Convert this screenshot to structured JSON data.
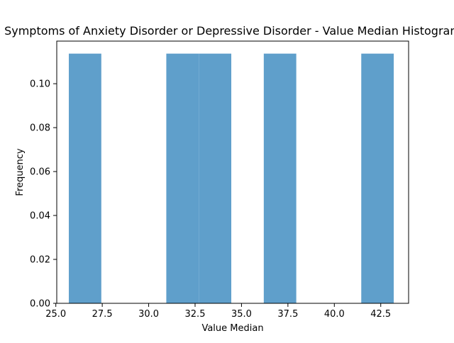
{
  "chart_data": {
    "type": "bar",
    "title": "Symptoms of Anxiety Disorder or Depressive Disorder - Value Median Histogram",
    "xlabel": "Value Median",
    "ylabel": "Frequency",
    "xlim": [
      25.05,
      44.0
    ],
    "ylim": [
      0,
      0.1194
    ],
    "bins": [
      {
        "x0": 25.7,
        "x1": 27.45,
        "value": 0.1137
      },
      {
        "x0": 27.45,
        "x1": 29.2,
        "value": 0
      },
      {
        "x0": 29.2,
        "x1": 30.95,
        "value": 0
      },
      {
        "x0": 30.95,
        "x1": 32.7,
        "value": 0.1137
      },
      {
        "x0": 32.7,
        "x1": 34.45,
        "value": 0.1137
      },
      {
        "x0": 34.45,
        "x1": 36.2,
        "value": 0
      },
      {
        "x0": 36.2,
        "x1": 37.95,
        "value": 0.1137
      },
      {
        "x0": 37.95,
        "x1": 39.7,
        "value": 0
      },
      {
        "x0": 39.7,
        "x1": 41.45,
        "value": 0
      },
      {
        "x0": 41.45,
        "x1": 43.2,
        "value": 0.1137
      }
    ],
    "x_ticks": [
      25.0,
      27.5,
      30.0,
      32.5,
      35.0,
      37.5,
      40.0,
      42.5
    ],
    "x_tick_labels": [
      "25.0",
      "27.5",
      "30.0",
      "32.5",
      "35.0",
      "37.5",
      "40.0",
      "42.5"
    ],
    "y_ticks": [
      0.0,
      0.02,
      0.04,
      0.06,
      0.08,
      0.1
    ],
    "y_tick_labels": [
      "0.00",
      "0.02",
      "0.04",
      "0.06",
      "0.08",
      "0.10"
    ],
    "grid": false,
    "bar_color": "#5f9fcb"
  }
}
